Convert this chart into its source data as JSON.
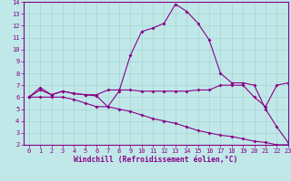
{
  "xlabel": "Windchill (Refroidissement éolien,°C)",
  "xlim": [
    -0.5,
    23
  ],
  "ylim": [
    2,
    14
  ],
  "xticks": [
    0,
    1,
    2,
    3,
    4,
    5,
    6,
    7,
    8,
    9,
    10,
    11,
    12,
    13,
    14,
    15,
    16,
    17,
    18,
    19,
    20,
    21,
    22,
    23
  ],
  "yticks": [
    2,
    3,
    4,
    5,
    6,
    7,
    8,
    9,
    10,
    11,
    12,
    13,
    14
  ],
  "bg_color": "#c0e8e8",
  "grid_color": "#a8d4d4",
  "line_color": "#880088",
  "line1_x": [
    0,
    1,
    2,
    3,
    4,
    5,
    6,
    7,
    8,
    9,
    10,
    11,
    12,
    13,
    14,
    15,
    16,
    17,
    18,
    19,
    20,
    21,
    22,
    23
  ],
  "line1_y": [
    6.0,
    6.6,
    6.2,
    6.5,
    6.3,
    6.2,
    6.1,
    5.2,
    6.5,
    9.5,
    11.5,
    11.8,
    12.2,
    13.8,
    13.2,
    12.2,
    10.8,
    8.0,
    7.2,
    7.2,
    7.0,
    5.0,
    3.5,
    2.2
  ],
  "line2_x": [
    0,
    1,
    2,
    3,
    4,
    5,
    6,
    7,
    8,
    9,
    10,
    11,
    12,
    13,
    14,
    15,
    16,
    17,
    18,
    19,
    20,
    21,
    22,
    23
  ],
  "line2_y": [
    6.0,
    6.8,
    6.2,
    6.5,
    6.3,
    6.2,
    6.2,
    6.6,
    6.6,
    6.6,
    6.5,
    6.5,
    6.5,
    6.5,
    6.5,
    6.6,
    6.6,
    7.0,
    7.0,
    7.0,
    6.0,
    5.2,
    7.0,
    7.2
  ],
  "line3_x": [
    0,
    1,
    2,
    3,
    4,
    5,
    6,
    7,
    8,
    9,
    10,
    11,
    12,
    13,
    14,
    15,
    16,
    17,
    18,
    19,
    20,
    21,
    22,
    23
  ],
  "line3_y": [
    6.0,
    6.0,
    6.0,
    6.0,
    5.8,
    5.5,
    5.2,
    5.2,
    5.0,
    4.8,
    4.5,
    4.2,
    4.0,
    3.8,
    3.5,
    3.2,
    3.0,
    2.8,
    2.7,
    2.5,
    2.3,
    2.2,
    2.0,
    2.0
  ],
  "tick_fontsize": 5.0,
  "xlabel_fontsize": 5.8,
  "marker_size": 2.0,
  "line_width": 0.8
}
